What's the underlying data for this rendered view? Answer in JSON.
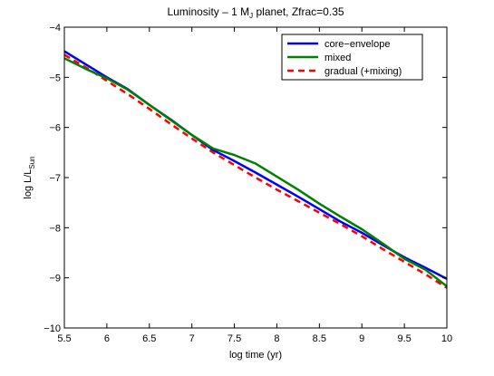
{
  "chart_data": {
    "type": "line",
    "title": "Luminosity – 1 M_J planet, Zfrac=0.35",
    "title_parts": {
      "pre": "Luminosity – 1 M",
      "sub": "J",
      "post": " planet, Zfrac=0.35"
    },
    "xlabel": "log time (yr)",
    "ylabel": "log L/L_Sun",
    "ylabel_parts": {
      "main": "log L/L",
      "sub": "Sun"
    },
    "xlim": [
      5.5,
      10
    ],
    "ylim": [
      -10,
      -4
    ],
    "xticks": [
      5.5,
      6,
      6.5,
      7,
      7.5,
      8,
      8.5,
      9,
      9.5,
      10
    ],
    "xtick_labels": [
      "5.5",
      "6",
      "6.5",
      "7",
      "7.5",
      "8",
      "8.5",
      "9",
      "9.5",
      "10"
    ],
    "yticks": [
      -10,
      -9,
      -8,
      -7,
      -6,
      -5,
      -4
    ],
    "ytick_labels": [
      "−10",
      "−9",
      "−8",
      "−7",
      "−6",
      "−5",
      "−4"
    ],
    "grid": false,
    "legend_position": "top-right",
    "series": [
      {
        "name": "core−envelope",
        "color": "#0000ff",
        "dash": "solid",
        "points": [
          [
            5.5,
            -4.48
          ],
          [
            5.75,
            -4.74
          ],
          [
            6.0,
            -5.0
          ],
          [
            6.25,
            -5.24
          ],
          [
            6.5,
            -5.55
          ],
          [
            6.75,
            -5.84
          ],
          [
            7.0,
            -6.15
          ],
          [
            7.25,
            -6.45
          ],
          [
            7.5,
            -6.67
          ],
          [
            7.75,
            -6.9
          ],
          [
            8.0,
            -7.14
          ],
          [
            8.25,
            -7.38
          ],
          [
            8.5,
            -7.63
          ],
          [
            8.75,
            -7.88
          ],
          [
            9.0,
            -8.1
          ],
          [
            9.25,
            -8.35
          ],
          [
            9.5,
            -8.59
          ],
          [
            9.75,
            -8.8
          ],
          [
            10.0,
            -9.02
          ]
        ]
      },
      {
        "name": "mixed",
        "color": "#008000",
        "dash": "solid",
        "points": [
          [
            5.5,
            -4.62
          ],
          [
            5.75,
            -4.83
          ],
          [
            6.0,
            -5.02
          ],
          [
            6.25,
            -5.25
          ],
          [
            6.5,
            -5.55
          ],
          [
            6.75,
            -5.85
          ],
          [
            7.0,
            -6.15
          ],
          [
            7.25,
            -6.42
          ],
          [
            7.5,
            -6.55
          ],
          [
            7.75,
            -6.72
          ],
          [
            8.0,
            -6.98
          ],
          [
            8.25,
            -7.24
          ],
          [
            8.5,
            -7.52
          ],
          [
            8.75,
            -7.78
          ],
          [
            9.0,
            -8.03
          ],
          [
            9.25,
            -8.32
          ],
          [
            9.5,
            -8.62
          ],
          [
            9.75,
            -8.84
          ],
          [
            10.0,
            -9.17
          ]
        ]
      },
      {
        "name": "gradual (+mixing)",
        "color": "#ff0000",
        "dash": "dashed",
        "points": [
          [
            5.5,
            -4.55
          ],
          [
            5.75,
            -4.8
          ],
          [
            6.0,
            -5.07
          ],
          [
            6.25,
            -5.34
          ],
          [
            6.5,
            -5.63
          ],
          [
            6.75,
            -5.93
          ],
          [
            7.0,
            -6.22
          ],
          [
            7.25,
            -6.5
          ],
          [
            7.5,
            -6.75
          ],
          [
            7.75,
            -7.0
          ],
          [
            8.0,
            -7.24
          ],
          [
            8.25,
            -7.47
          ],
          [
            8.5,
            -7.7
          ],
          [
            8.75,
            -7.93
          ],
          [
            9.0,
            -8.17
          ],
          [
            9.25,
            -8.43
          ],
          [
            9.5,
            -8.68
          ],
          [
            9.75,
            -8.93
          ],
          [
            10.0,
            -9.2
          ]
        ]
      }
    ]
  }
}
